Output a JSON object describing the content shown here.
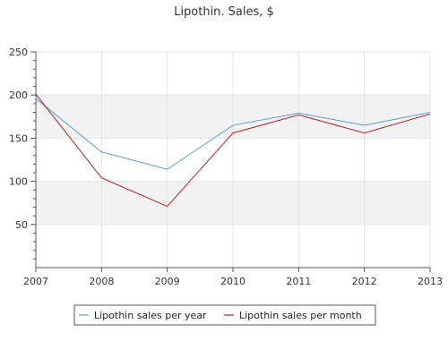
{
  "chart_data": {
    "type": "line",
    "title": "Lipothin. Sales, $",
    "xlabel": "",
    "ylabel": "",
    "x": [
      "2007",
      "2008",
      "2009",
      "2010",
      "2011",
      "2012",
      "2013"
    ],
    "ylim": [
      0,
      250
    ],
    "yticks": [
      50,
      100,
      150,
      200,
      250
    ],
    "grid": true,
    "legend_position": "bottom-center",
    "series": [
      {
        "name": "Lipothin sales per year",
        "color": "#5b9bd5",
        "values": [
          196,
          134,
          114,
          165,
          179,
          165,
          180
        ]
      },
      {
        "name": "Lipothin sales per month",
        "color": "#b22222",
        "values": [
          201,
          104,
          71,
          156,
          177,
          156,
          178
        ]
      }
    ],
    "band_color": "#f2f2f2"
  }
}
